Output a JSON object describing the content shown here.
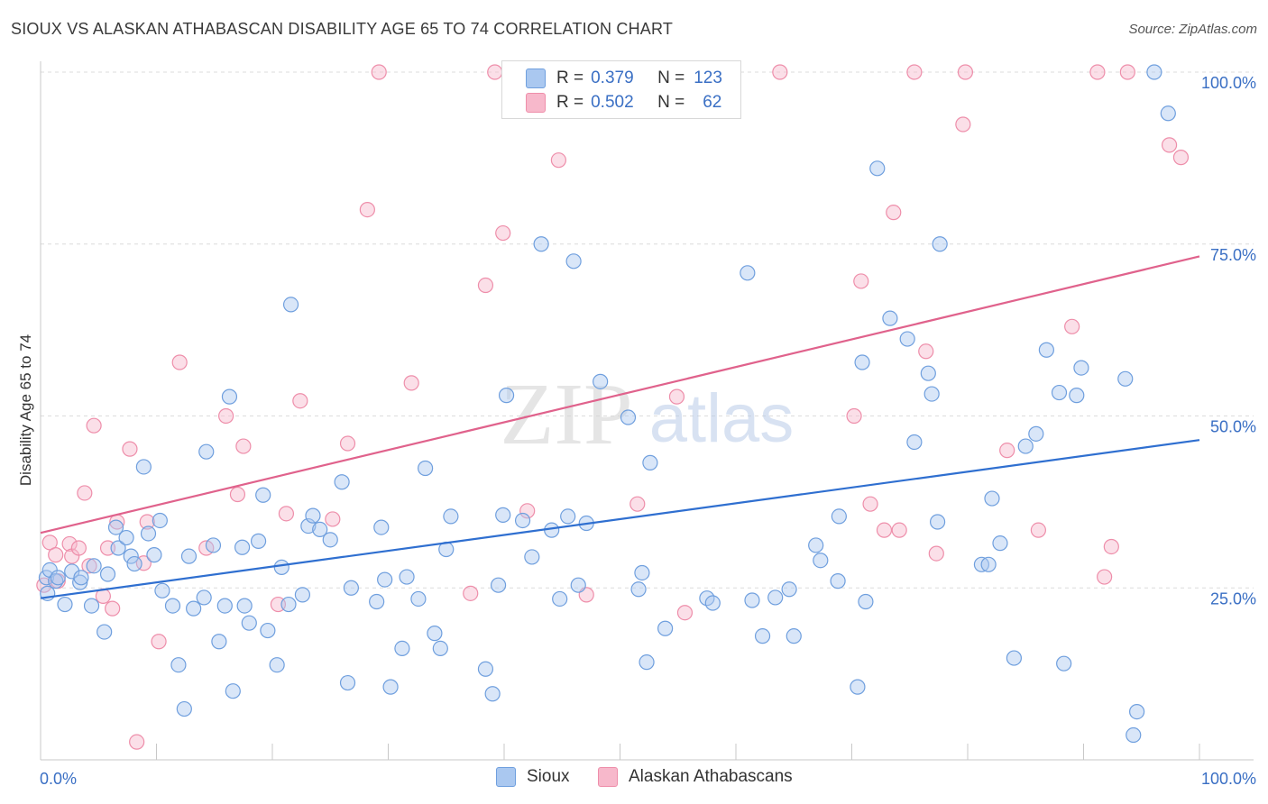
{
  "title": "SIOUX VS ALASKAN ATHABASCAN DISABILITY AGE 65 TO 74 CORRELATION CHART",
  "source": "Source: ZipAtlas.com",
  "watermark": {
    "zip": "ZIP",
    "atlas": "atlas"
  },
  "legend": {
    "r_label": "R =",
    "n_label": "N =",
    "rows": [
      {
        "r": "0.379",
        "n": "123"
      },
      {
        "r": "0.502",
        "n": "62"
      }
    ]
  },
  "colors": {
    "sioux_fill": "#aac8f0",
    "sioux_stroke": "#6f9fde",
    "sioux_line": "#2f6fd0",
    "alaska_fill": "#f7b8cb",
    "alaska_stroke": "#ee8eaa",
    "alaska_line": "#e0628c",
    "axis_label": "#3a6fc4"
  },
  "chart_data": {
    "type": "scatter",
    "title": "SIOUX VS ALASKAN ATHABASCAN DISABILITY AGE 65 TO 74 CORRELATION CHART",
    "xlabel": "",
    "ylabel": "Disability Age 65 to 74",
    "xlim": [
      0,
      100
    ],
    "ylim": [
      0,
      100
    ],
    "x_tick_labels": [
      "0.0%",
      "100.0%"
    ],
    "y_tick_labels": [
      "25.0%",
      "50.0%",
      "75.0%",
      "100.0%"
    ],
    "y_ticks": [
      25,
      50,
      75,
      100
    ],
    "grid": true,
    "legend_position": "top-center",
    "series": [
      {
        "name": "Sioux",
        "r": 0.379,
        "n": 123,
        "trend": {
          "y_at_0": 23.5,
          "y_at_100": 46.5
        },
        "points": [
          [
            0.5,
            26.5
          ],
          [
            0.6,
            24.2
          ],
          [
            0.8,
            27.6
          ],
          [
            1.3,
            26.0
          ],
          [
            1.5,
            26.5
          ],
          [
            2.1,
            22.6
          ],
          [
            2.7,
            27.4
          ],
          [
            3.4,
            25.8
          ],
          [
            3.5,
            26.5
          ],
          [
            4.4,
            22.4
          ],
          [
            4.6,
            28.2
          ],
          [
            5.5,
            18.6
          ],
          [
            5.8,
            27.0
          ],
          [
            6.5,
            33.8
          ],
          [
            6.7,
            30.8
          ],
          [
            7.4,
            32.3
          ],
          [
            7.8,
            29.6
          ],
          [
            8.1,
            28.5
          ],
          [
            8.9,
            42.6
          ],
          [
            9.3,
            32.9
          ],
          [
            9.8,
            29.8
          ],
          [
            10.3,
            34.8
          ],
          [
            10.5,
            24.6
          ],
          [
            11.4,
            22.4
          ],
          [
            11.9,
            13.8
          ],
          [
            12.4,
            7.4
          ],
          [
            12.8,
            29.6
          ],
          [
            13.2,
            22.0
          ],
          [
            14.1,
            23.6
          ],
          [
            14.3,
            44.8
          ],
          [
            14.9,
            31.2
          ],
          [
            15.4,
            17.2
          ],
          [
            15.9,
            22.4
          ],
          [
            16.3,
            52.8
          ],
          [
            16.6,
            10.0
          ],
          [
            17.4,
            30.9
          ],
          [
            17.6,
            22.4
          ],
          [
            18.0,
            19.9
          ],
          [
            18.8,
            31.8
          ],
          [
            19.2,
            38.5
          ],
          [
            19.6,
            18.8
          ],
          [
            20.4,
            13.8
          ],
          [
            20.8,
            28.0
          ],
          [
            21.4,
            22.6
          ],
          [
            21.6,
            66.2
          ],
          [
            22.6,
            24.0
          ],
          [
            23.1,
            34.0
          ],
          [
            23.5,
            35.5
          ],
          [
            24.1,
            33.5
          ],
          [
            25.0,
            32.0
          ],
          [
            26.0,
            40.4
          ],
          [
            26.5,
            11.2
          ],
          [
            26.8,
            25.0
          ],
          [
            29.0,
            23.0
          ],
          [
            29.4,
            33.8
          ],
          [
            29.7,
            26.2
          ],
          [
            30.2,
            10.6
          ],
          [
            31.2,
            16.2
          ],
          [
            31.6,
            26.6
          ],
          [
            32.6,
            23.4
          ],
          [
            33.2,
            42.4
          ],
          [
            34.0,
            18.4
          ],
          [
            34.5,
            16.2
          ],
          [
            35.0,
            30.6
          ],
          [
            35.4,
            35.4
          ],
          [
            38.4,
            13.2
          ],
          [
            39.0,
            9.6
          ],
          [
            39.5,
            25.4
          ],
          [
            39.9,
            35.6
          ],
          [
            40.2,
            53.0
          ],
          [
            41.6,
            34.8
          ],
          [
            42.4,
            29.5
          ],
          [
            43.2,
            75.0
          ],
          [
            44.1,
            33.4
          ],
          [
            44.8,
            23.4
          ],
          [
            45.5,
            35.4
          ],
          [
            46.0,
            72.5
          ],
          [
            46.4,
            25.4
          ],
          [
            47.1,
            34.4
          ],
          [
            48.3,
            55.0
          ],
          [
            50.7,
            49.8
          ],
          [
            51.6,
            24.8
          ],
          [
            51.9,
            27.2
          ],
          [
            52.3,
            14.2
          ],
          [
            52.6,
            43.2
          ],
          [
            53.9,
            19.1
          ],
          [
            57.5,
            23.5
          ],
          [
            58.0,
            22.8
          ],
          [
            61.0,
            70.8
          ],
          [
            61.4,
            23.2
          ],
          [
            62.3,
            18.0
          ],
          [
            63.4,
            23.6
          ],
          [
            64.6,
            24.8
          ],
          [
            65.0,
            18.0
          ],
          [
            66.9,
            31.2
          ],
          [
            67.3,
            29.0
          ],
          [
            68.8,
            26.0
          ],
          [
            68.9,
            35.4
          ],
          [
            70.5,
            10.6
          ],
          [
            70.9,
            57.8
          ],
          [
            71.2,
            23.0
          ],
          [
            72.2,
            86.0
          ],
          [
            73.3,
            64.2
          ],
          [
            74.8,
            61.2
          ],
          [
            75.4,
            46.2
          ],
          [
            76.6,
            56.2
          ],
          [
            76.9,
            53.2
          ],
          [
            77.4,
            34.6
          ],
          [
            77.6,
            75.0
          ],
          [
            81.2,
            28.4
          ],
          [
            81.8,
            28.4
          ],
          [
            82.1,
            38.0
          ],
          [
            82.8,
            31.5
          ],
          [
            84.0,
            14.8
          ],
          [
            85.0,
            45.6
          ],
          [
            85.9,
            47.4
          ],
          [
            86.8,
            59.6
          ],
          [
            87.9,
            53.4
          ],
          [
            88.3,
            14.0
          ],
          [
            89.4,
            53.0
          ],
          [
            89.8,
            57.0
          ],
          [
            93.6,
            55.4
          ],
          [
            94.3,
            3.6
          ],
          [
            94.6,
            7.0
          ],
          [
            96.1,
            100.0
          ],
          [
            97.3,
            94.0
          ]
        ]
      },
      {
        "name": "Alaskan Athabascans",
        "r": 0.502,
        "n": 62,
        "trend": {
          "y_at_0": 33.0,
          "y_at_100": 73.2
        },
        "points": [
          [
            0.3,
            25.4
          ],
          [
            0.8,
            31.6
          ],
          [
            1.3,
            29.8
          ],
          [
            1.5,
            26.0
          ],
          [
            2.5,
            31.4
          ],
          [
            2.7,
            29.6
          ],
          [
            3.3,
            30.8
          ],
          [
            3.8,
            38.8
          ],
          [
            4.2,
            28.2
          ],
          [
            4.6,
            48.6
          ],
          [
            5.4,
            23.8
          ],
          [
            5.8,
            30.8
          ],
          [
            6.2,
            22.0
          ],
          [
            6.6,
            34.6
          ],
          [
            7.7,
            45.2
          ],
          [
            8.3,
            2.6
          ],
          [
            8.9,
            28.6
          ],
          [
            9.2,
            34.6
          ],
          [
            10.2,
            17.2
          ],
          [
            12.0,
            57.8
          ],
          [
            14.3,
            30.8
          ],
          [
            16.0,
            50.0
          ],
          [
            17.0,
            38.6
          ],
          [
            17.5,
            45.6
          ],
          [
            20.5,
            22.6
          ],
          [
            21.2,
            35.8
          ],
          [
            22.4,
            52.2
          ],
          [
            25.2,
            35.0
          ],
          [
            26.5,
            46.0
          ],
          [
            28.2,
            80.0
          ],
          [
            29.2,
            100.0
          ],
          [
            32.0,
            54.8
          ],
          [
            37.1,
            24.2
          ],
          [
            38.4,
            69.0
          ],
          [
            39.2,
            100.0
          ],
          [
            39.9,
            76.6
          ],
          [
            42.0,
            36.2
          ],
          [
            44.7,
            87.2
          ],
          [
            47.1,
            24.0
          ],
          [
            51.5,
            37.2
          ],
          [
            54.9,
            52.8
          ],
          [
            55.6,
            21.4
          ],
          [
            63.8,
            100.0
          ],
          [
            70.2,
            50.0
          ],
          [
            70.8,
            69.6
          ],
          [
            71.6,
            37.2
          ],
          [
            72.8,
            33.4
          ],
          [
            73.6,
            79.6
          ],
          [
            74.1,
            33.4
          ],
          [
            75.4,
            100.0
          ],
          [
            76.4,
            59.4
          ],
          [
            77.3,
            30.0
          ],
          [
            79.6,
            92.4
          ],
          [
            79.8,
            100.0
          ],
          [
            83.4,
            45.0
          ],
          [
            86.1,
            33.4
          ],
          [
            89.0,
            63.0
          ],
          [
            91.2,
            100.0
          ],
          [
            91.8,
            26.6
          ],
          [
            92.4,
            31.0
          ],
          [
            93.8,
            100.0
          ],
          [
            97.4,
            89.4
          ],
          [
            98.4,
            87.6
          ]
        ]
      }
    ]
  },
  "bottom_legend": [
    "Sioux",
    "Alaskan Athabascans"
  ]
}
